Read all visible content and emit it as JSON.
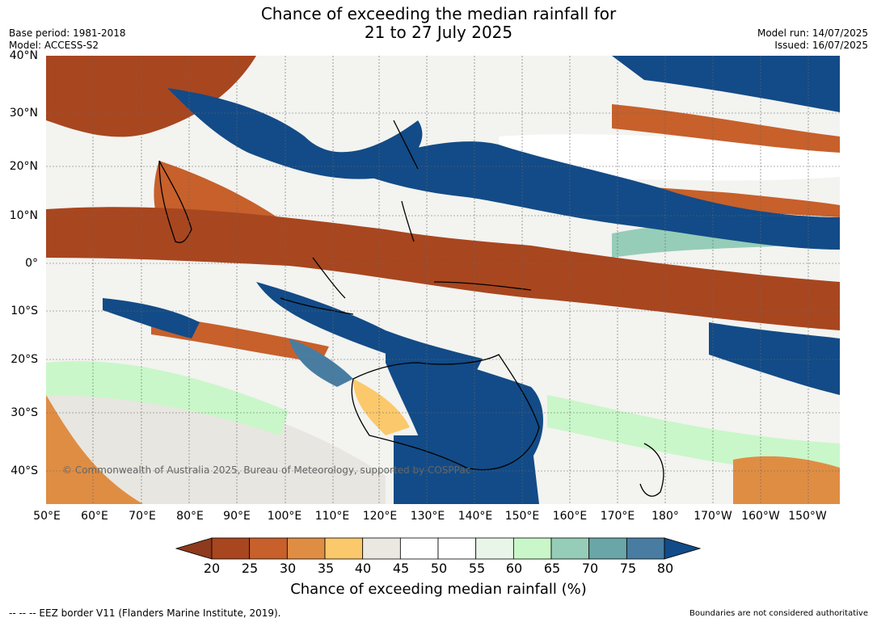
{
  "header": {
    "title_line1": "Chance of exceeding the median rainfall for",
    "title_line2": "21 to 27 July 2025",
    "base_period": "Base period: 1981-2018",
    "model": "Model: ACCESS-S2",
    "model_run": "Model run: 14/07/2025",
    "issued": "Issued: 16/07/2025"
  },
  "map": {
    "lat_labels": [
      "40°N",
      "30°N",
      "20°N",
      "10°N",
      "0°",
      "10°S",
      "20°S",
      "30°S",
      "40°S"
    ],
    "lon_labels": [
      "50°E",
      "60°E",
      "70°E",
      "80°E",
      "90°E",
      "100°E",
      "110°E",
      "120°E",
      "130°E",
      "140°E",
      "150°E",
      "160°E",
      "170°E",
      "180°",
      "170°W",
      "160°W",
      "150°W"
    ],
    "copyright": "© Commonwealth of Australia 2025, Bureau of Meteorology, supported by COSPPac"
  },
  "legend": {
    "ticks": [
      "20",
      "25",
      "30",
      "35",
      "40",
      "45",
      "50",
      "55",
      "60",
      "65",
      "70",
      "75",
      "80"
    ],
    "colors": [
      "#8e3a1c",
      "#a8461f",
      "#c7602b",
      "#e08d44",
      "#fbc96b",
      "#ebe8e2",
      "#ffffff",
      "#ffffff",
      "#eaf5ea",
      "#c9f7c9",
      "#96cdb8",
      "#6aa5a8",
      "#487da1",
      "#124b87"
    ],
    "label": "Chance of exceeding median rainfall (%)"
  },
  "footer": {
    "eez": "--  --  -- EEZ border V11 (Flanders Marine Institute, 2019).",
    "disclaimer": "Boundaries are not considered authoritative"
  }
}
